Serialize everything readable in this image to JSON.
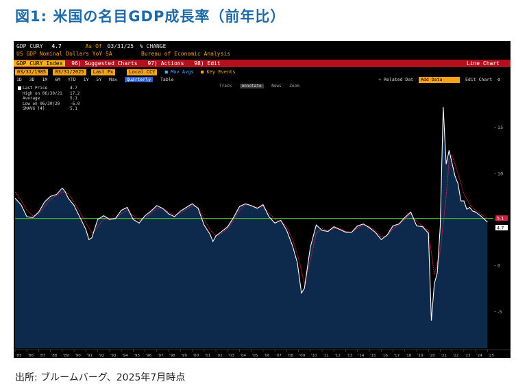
{
  "figure": {
    "title": "図1: 米国の名目GDP成長率（前年比）",
    "source": "出所: ブルームバーグ、2025年7月時点"
  },
  "terminal": {
    "ticker": "GDP CURY",
    "last_value": "4.7",
    "as_of_label": "As Of",
    "as_of_date": "03/31/25",
    "unit_label": "% CHANGE",
    "description": "US GDP Nominal Dollars YoY SA",
    "source_name": "Bureau of Economic Analysis"
  },
  "toolbar": {
    "index_label": "GDP CURY Index",
    "suggested_charts": "96) Suggested Charts",
    "actions": "97) Actions",
    "edit": "98) Edit",
    "line_chart": "Line Chart"
  },
  "inputs": {
    "start_date": "03/31/1985",
    "end_date": "03/31/2025",
    "last_px": "Last Px",
    "local_ccy": "Local CCY",
    "mov_avgs": "Mov Avgs",
    "key_events": "Key Events"
  },
  "periods": {
    "items": [
      "1D",
      "3D",
      "1M",
      "6M",
      "YTD",
      "1Y",
      "5Y",
      "Max"
    ],
    "selected": "Quarterly",
    "table": "Table",
    "related_data": "+ Related Dat",
    "add_data": "Add Data",
    "edit_chart": "Edit Chart"
  },
  "chart_tools": {
    "track": "Track",
    "annotate": "Annotate",
    "news": "News",
    "zoom": "Zoom"
  },
  "legend": {
    "last_price": {
      "label": "Last Price",
      "value": "4.7"
    },
    "high": {
      "label": "High on 06/30/21",
      "value": "17.2"
    },
    "average": {
      "label": "Average",
      "value": "5.1"
    },
    "low": {
      "label": "Low on 06/30/20",
      "value": "-6.0"
    },
    "smavg": {
      "label": "SMAVG (4)",
      "value": "5.1"
    }
  },
  "colors": {
    "title": "#1e6aa8",
    "area_fill": "#0d2a4d",
    "price_line": "#ffffff",
    "avg_line": "#3fae2b",
    "smavg_line": "#cc2244",
    "badge_price": "#ffffff",
    "badge_smavg": "#cc2244"
  },
  "chart_data": {
    "type": "area",
    "ylim": [
      -9,
      19
    ],
    "yticks": [
      -5,
      0,
      5,
      10,
      15
    ],
    "x_range": [
      1985.0,
      2025.5
    ],
    "xticks": [
      "'85",
      "'86",
      "'87",
      "'88",
      "'89",
      "'90",
      "'91",
      "'92",
      "'93",
      "'94",
      "'95",
      "'96",
      "'97",
      "'98",
      "'99",
      "'00",
      "'01",
      "'02",
      "'03",
      "'04",
      "'05",
      "'06",
      "'07",
      "'08",
      "'09",
      "'10",
      "'11",
      "'12",
      "'13",
      "'14",
      "'15",
      "'16",
      "'17",
      "'18",
      "'19",
      "'20",
      "'21",
      "'22",
      "'23",
      "'24",
      "'25"
    ],
    "average": 5.1,
    "badge_last": "4.7",
    "badge_smavg": "5.1",
    "series": [
      {
        "name": "Last Price",
        "points": [
          [
            1985.0,
            7.3
          ],
          [
            1985.5,
            6.6
          ],
          [
            1986.0,
            5.3
          ],
          [
            1986.5,
            5.2
          ],
          [
            1987.0,
            5.8
          ],
          [
            1987.5,
            6.9
          ],
          [
            1988.0,
            7.5
          ],
          [
            1988.5,
            7.7
          ],
          [
            1989.0,
            8.4
          ],
          [
            1989.25,
            8.0
          ],
          [
            1989.5,
            7.3
          ],
          [
            1990.0,
            6.5
          ],
          [
            1990.5,
            5.2
          ],
          [
            1991.0,
            3.9
          ],
          [
            1991.25,
            2.8
          ],
          [
            1991.5,
            3.0
          ],
          [
            1992.0,
            5.0
          ],
          [
            1992.5,
            5.4
          ],
          [
            1993.0,
            5.0
          ],
          [
            1993.5,
            5.1
          ],
          [
            1994.0,
            6.0
          ],
          [
            1994.5,
            6.3
          ],
          [
            1995.0,
            5.0
          ],
          [
            1995.5,
            4.6
          ],
          [
            1996.0,
            5.4
          ],
          [
            1996.5,
            5.9
          ],
          [
            1997.0,
            6.5
          ],
          [
            1997.5,
            6.2
          ],
          [
            1998.0,
            5.6
          ],
          [
            1998.5,
            5.3
          ],
          [
            1999.0,
            5.9
          ],
          [
            1999.5,
            6.3
          ],
          [
            2000.0,
            6.7
          ],
          [
            2000.5,
            6.2
          ],
          [
            2001.0,
            4.4
          ],
          [
            2001.5,
            3.4
          ],
          [
            2001.75,
            2.6
          ],
          [
            2002.0,
            3.2
          ],
          [
            2002.5,
            3.7
          ],
          [
            2003.0,
            4.2
          ],
          [
            2003.5,
            5.2
          ],
          [
            2004.0,
            6.4
          ],
          [
            2004.5,
            6.7
          ],
          [
            2005.0,
            6.5
          ],
          [
            2005.5,
            6.2
          ],
          [
            2006.0,
            6.6
          ],
          [
            2006.5,
            5.3
          ],
          [
            2007.0,
            4.6
          ],
          [
            2007.5,
            4.9
          ],
          [
            2008.0,
            3.8
          ],
          [
            2008.5,
            2.1
          ],
          [
            2008.9,
            0.3
          ],
          [
            2009.25,
            -3.0
          ],
          [
            2009.5,
            -2.5
          ],
          [
            2010.0,
            2.0
          ],
          [
            2010.5,
            4.4
          ],
          [
            2011.0,
            3.8
          ],
          [
            2011.5,
            3.7
          ],
          [
            2012.0,
            4.2
          ],
          [
            2012.5,
            3.9
          ],
          [
            2013.0,
            3.6
          ],
          [
            2013.5,
            3.6
          ],
          [
            2014.0,
            4.3
          ],
          [
            2014.5,
            4.5
          ],
          [
            2015.0,
            4.1
          ],
          [
            2015.5,
            3.6
          ],
          [
            2016.0,
            2.8
          ],
          [
            2016.5,
            3.3
          ],
          [
            2017.0,
            4.3
          ],
          [
            2017.5,
            4.5
          ],
          [
            2018.0,
            5.2
          ],
          [
            2018.5,
            5.8
          ],
          [
            2019.0,
            4.3
          ],
          [
            2019.5,
            4.2
          ],
          [
            2020.0,
            3.5
          ],
          [
            2020.25,
            -6.0
          ],
          [
            2020.5,
            -2.0
          ],
          [
            2020.75,
            -0.8
          ],
          [
            2021.0,
            4.2
          ],
          [
            2021.25,
            17.2
          ],
          [
            2021.5,
            11.0
          ],
          [
            2021.75,
            12.5
          ],
          [
            2022.0,
            11.1
          ],
          [
            2022.25,
            9.7
          ],
          [
            2022.5,
            8.9
          ],
          [
            2022.75,
            7.0
          ],
          [
            2023.0,
            7.0
          ],
          [
            2023.25,
            6.1
          ],
          [
            2023.5,
            6.3
          ],
          [
            2023.75,
            5.9
          ],
          [
            2024.0,
            5.8
          ],
          [
            2024.5,
            5.3
          ],
          [
            2024.75,
            5.0
          ],
          [
            2025.0,
            4.7
          ]
        ]
      },
      {
        "name": "SMAVG (4)",
        "points": [
          [
            1985.0,
            8.0
          ],
          [
            1985.5,
            7.1
          ],
          [
            1986.0,
            6.0
          ],
          [
            1986.5,
            5.4
          ],
          [
            1987.0,
            5.6
          ],
          [
            1987.5,
            6.4
          ],
          [
            1988.0,
            7.2
          ],
          [
            1988.5,
            7.6
          ],
          [
            1989.0,
            8.0
          ],
          [
            1989.5,
            7.8
          ],
          [
            1990.0,
            6.9
          ],
          [
            1990.5,
            5.8
          ],
          [
            1991.0,
            4.6
          ],
          [
            1991.5,
            3.5
          ],
          [
            1992.0,
            4.2
          ],
          [
            1992.5,
            5.0
          ],
          [
            1993.0,
            5.1
          ],
          [
            1993.5,
            5.1
          ],
          [
            1994.0,
            5.6
          ],
          [
            1994.5,
            6.0
          ],
          [
            1995.0,
            5.4
          ],
          [
            1995.5,
            4.9
          ],
          [
            1996.0,
            5.1
          ],
          [
            1996.5,
            5.7
          ],
          [
            1997.0,
            6.2
          ],
          [
            1997.5,
            6.2
          ],
          [
            1998.0,
            5.8
          ],
          [
            1998.5,
            5.5
          ],
          [
            1999.0,
            5.7
          ],
          [
            1999.5,
            6.1
          ],
          [
            2000.0,
            6.5
          ],
          [
            2000.5,
            6.3
          ],
          [
            2001.0,
            5.0
          ],
          [
            2001.5,
            3.9
          ],
          [
            2002.0,
            3.2
          ],
          [
            2002.5,
            3.5
          ],
          [
            2003.0,
            4.0
          ],
          [
            2003.5,
            4.9
          ],
          [
            2004.0,
            6.0
          ],
          [
            2004.5,
            6.6
          ],
          [
            2005.0,
            6.5
          ],
          [
            2005.5,
            6.3
          ],
          [
            2006.0,
            6.4
          ],
          [
            2006.5,
            5.7
          ],
          [
            2007.0,
            5.0
          ],
          [
            2007.5,
            4.8
          ],
          [
            2008.0,
            4.2
          ],
          [
            2008.5,
            2.8
          ],
          [
            2009.0,
            0.8
          ],
          [
            2009.5,
            -2.0
          ],
          [
            2010.0,
            0.5
          ],
          [
            2010.5,
            3.5
          ],
          [
            2011.0,
            4.0
          ],
          [
            2011.5,
            3.8
          ],
          [
            2012.0,
            4.0
          ],
          [
            2012.5,
            4.0
          ],
          [
            2013.0,
            3.7
          ],
          [
            2013.5,
            3.6
          ],
          [
            2014.0,
            4.1
          ],
          [
            2014.5,
            4.4
          ],
          [
            2015.0,
            4.2
          ],
          [
            2015.5,
            3.8
          ],
          [
            2016.0,
            3.1
          ],
          [
            2016.5,
            3.2
          ],
          [
            2017.0,
            4.0
          ],
          [
            2017.5,
            4.4
          ],
          [
            2018.0,
            5.0
          ],
          [
            2018.5,
            5.6
          ],
          [
            2019.0,
            4.8
          ],
          [
            2019.5,
            4.3
          ],
          [
            2020.0,
            3.8
          ],
          [
            2020.5,
            -1.0
          ],
          [
            2021.0,
            1.5
          ],
          [
            2021.5,
            7.5
          ],
          [
            2021.75,
            11.5
          ],
          [
            2022.0,
            12.0
          ],
          [
            2022.5,
            10.0
          ],
          [
            2023.0,
            7.8
          ],
          [
            2023.5,
            6.6
          ],
          [
            2024.0,
            6.0
          ],
          [
            2024.5,
            5.5
          ],
          [
            2025.0,
            5.1
          ]
        ]
      }
    ]
  }
}
